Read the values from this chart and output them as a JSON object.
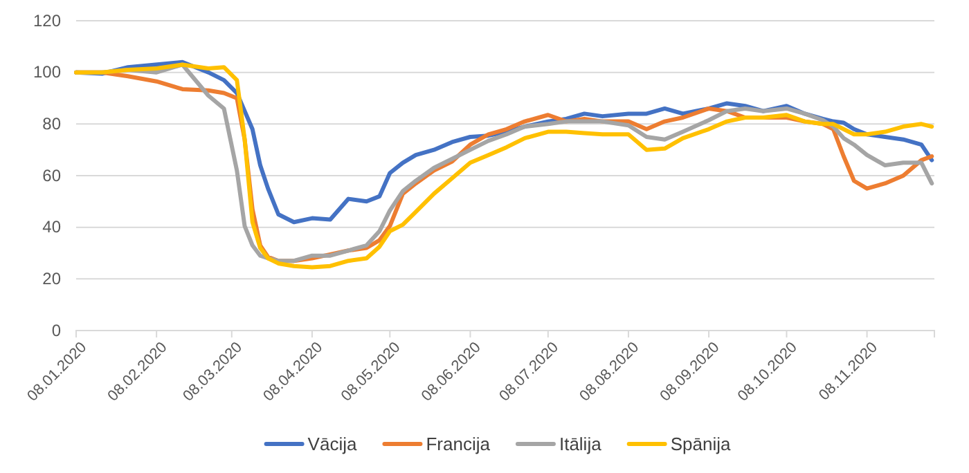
{
  "chart_data": {
    "type": "line",
    "x": [
      "2020-01-08",
      "2020-01-18",
      "2020-01-28",
      "2020-02-08",
      "2020-02-18",
      "2020-02-28",
      "2020-03-05",
      "2020-03-10",
      "2020-03-13",
      "2020-03-16",
      "2020-03-19",
      "2020-03-22",
      "2020-03-26",
      "2020-04-01",
      "2020-04-08",
      "2020-04-15",
      "2020-04-22",
      "2020-04-29",
      "2020-05-04",
      "2020-05-08",
      "2020-05-13",
      "2020-05-18",
      "2020-05-25",
      "2020-06-01",
      "2020-06-08",
      "2020-06-15",
      "2020-06-22",
      "2020-06-29",
      "2020-07-08",
      "2020-07-15",
      "2020-07-22",
      "2020-07-29",
      "2020-08-08",
      "2020-08-15",
      "2020-08-22",
      "2020-08-29",
      "2020-09-08",
      "2020-09-15",
      "2020-09-22",
      "2020-09-29",
      "2020-10-08",
      "2020-10-15",
      "2020-10-22",
      "2020-10-26",
      "2020-10-30",
      "2020-11-03",
      "2020-11-08",
      "2020-11-15",
      "2020-11-22",
      "2020-11-29",
      "2020-12-03"
    ],
    "series": [
      {
        "name": "Vācija",
        "color": "#4472c4",
        "x": [
          "2020-01-08",
          "2020-01-18",
          "2020-01-28",
          "2020-02-18",
          "2020-02-28",
          "2020-03-05",
          "2020-03-10",
          "2020-03-13",
          "2020-03-16",
          "2020-03-19",
          "2020-03-22",
          "2020-03-26",
          "2020-04-01",
          "2020-04-08",
          "2020-04-15",
          "2020-04-22",
          "2020-04-29",
          "2020-05-04",
          "2020-05-08",
          "2020-05-13",
          "2020-05-18",
          "2020-05-25",
          "2020-06-01",
          "2020-06-08",
          "2020-06-15",
          "2020-06-22",
          "2020-06-29",
          "2020-07-08",
          "2020-07-15",
          "2020-07-22",
          "2020-07-29",
          "2020-08-08",
          "2020-08-15",
          "2020-08-22",
          "2020-08-29",
          "2020-09-08",
          "2020-09-15",
          "2020-09-22",
          "2020-09-29",
          "2020-10-08",
          "2020-10-15",
          "2020-10-22",
          "2020-10-26",
          "2020-10-30",
          "2020-11-03",
          "2020-11-08",
          "2020-11-15",
          "2020-11-22",
          "2020-11-29",
          "2020-12-03"
        ],
        "values": [
          100,
          99.5,
          102,
          104,
          100,
          97,
          92,
          85,
          78,
          64,
          55,
          45,
          42,
          43.5,
          43,
          51,
          50,
          52,
          61,
          65,
          68,
          70,
          73,
          75,
          75.5,
          77,
          79,
          81,
          82,
          84,
          83,
          84,
          84,
          86,
          84,
          86,
          88,
          87,
          85,
          87,
          84,
          82,
          81,
          80.5,
          78,
          76,
          75,
          74,
          72,
          66
        ]
      },
      {
        "name": "Francija",
        "color": "#ed7d31",
        "values": [
          100,
          100,
          98.5,
          96.5,
          93.5,
          93,
          92,
          90,
          74,
          47,
          33,
          28.5,
          27,
          27,
          28,
          29.5,
          31,
          32,
          35,
          40.5,
          53,
          57,
          62,
          65.5,
          72,
          76,
          78,
          81,
          83.5,
          81,
          82,
          81,
          81,
          78,
          81,
          82.5,
          86,
          85,
          82.5,
          82.5,
          82.5,
          81,
          80,
          78,
          67.5,
          58,
          55,
          57,
          60,
          66,
          67.5
        ]
      },
      {
        "name": "Itālija",
        "color": "#a5a5a5",
        "values": [
          100,
          100,
          101,
          100,
          103,
          91,
          86,
          62,
          40.5,
          33,
          29,
          28,
          27,
          27,
          29,
          29,
          31,
          33,
          38.5,
          46.5,
          54,
          58,
          63,
          66.5,
          70,
          73.5,
          76,
          79,
          80,
          81,
          81,
          81,
          79.5,
          75,
          74,
          77,
          81.5,
          85,
          86,
          85,
          86,
          84,
          81.5,
          79,
          74.5,
          72,
          68,
          64,
          65,
          65,
          57
        ]
      },
      {
        "name": "Spānija",
        "color": "#ffc000",
        "values": [
          100,
          100,
          101,
          101.5,
          103,
          101.5,
          102,
          97,
          74,
          42,
          32,
          28,
          26,
          25,
          24.5,
          25,
          27,
          28,
          32.5,
          38.5,
          41,
          46,
          53,
          59,
          65,
          68,
          71,
          74.5,
          77,
          77,
          76.5,
          76,
          76,
          70,
          70.5,
          74.5,
          78,
          81,
          82.5,
          82.5,
          83.5,
          81,
          80,
          80,
          78,
          76,
          76,
          77,
          79,
          80,
          79
        ]
      }
    ],
    "xlim": [
      "2020-01-08",
      "2020-12-04"
    ],
    "xticks": [
      {
        "value": "2020-01-08",
        "label": "08.01.2020"
      },
      {
        "value": "2020-02-08",
        "label": "08.02.2020"
      },
      {
        "value": "2020-03-08",
        "label": "08.03.2020"
      },
      {
        "value": "2020-04-08",
        "label": "08.04.2020"
      },
      {
        "value": "2020-05-08",
        "label": "08.05.2020"
      },
      {
        "value": "2020-06-08",
        "label": "08.06.2020"
      },
      {
        "value": "2020-07-08",
        "label": "08.07.2020"
      },
      {
        "value": "2020-08-08",
        "label": "08.08.2020"
      },
      {
        "value": "2020-09-08",
        "label": "08.09.2020"
      },
      {
        "value": "2020-10-08",
        "label": "08.10.2020"
      },
      {
        "value": "2020-11-08",
        "label": "08.11.2020"
      }
    ],
    "ylim": [
      0,
      120
    ],
    "yticks": [
      0,
      20,
      40,
      60,
      80,
      100,
      120
    ],
    "grid": "y",
    "legend": "bottom",
    "marker": "none",
    "line_style": "solid"
  }
}
